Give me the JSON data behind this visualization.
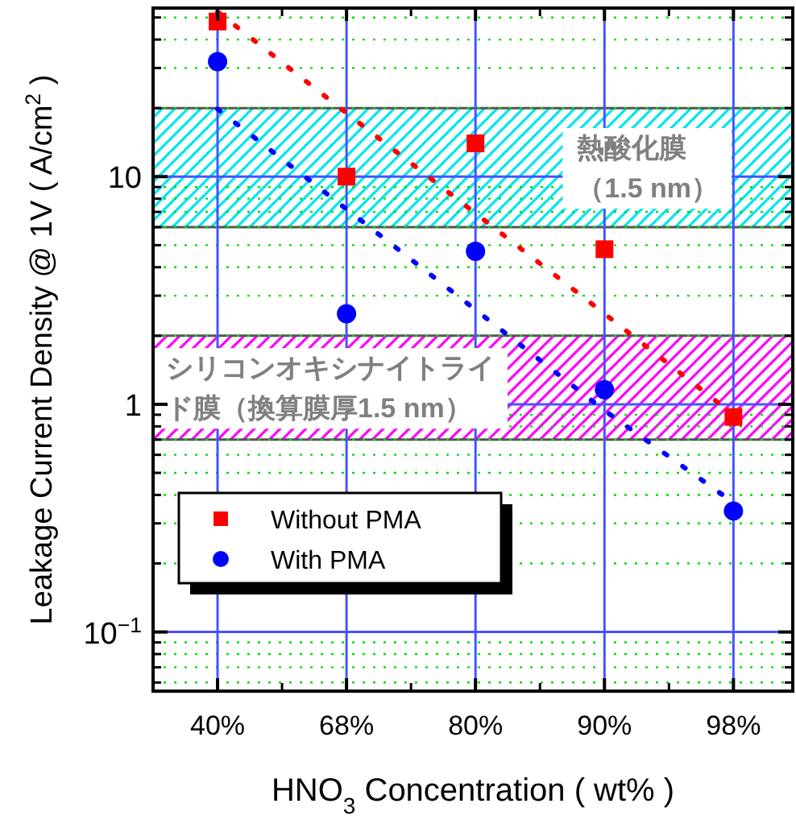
{
  "chart_data": {
    "type": "scatter",
    "xlabel": "HNO$_{3}$ Concentration ( wt% )",
    "ylabel": "Leakage Current Density @ 1V ( A/cm$^{2}$ )",
    "categories": [
      "40%",
      "68%",
      "80%",
      "90%",
      "98%"
    ],
    "log": "y",
    "ylim": [
      0.055,
      55
    ],
    "yticks": [
      {
        "value": 0.06,
        "label": null
      },
      {
        "value": 0.07,
        "label": null
      },
      {
        "value": 0.08,
        "label": null
      },
      {
        "value": 0.09,
        "label": null
      },
      {
        "value": 0.1,
        "label": "10$^{−1}$"
      },
      {
        "value": 0.2,
        "label": null
      },
      {
        "value": 0.3,
        "label": null
      },
      {
        "value": 0.4,
        "label": null
      },
      {
        "value": 0.5,
        "label": null
      },
      {
        "value": 0.6,
        "label": null
      },
      {
        "value": 0.7,
        "label": null
      },
      {
        "value": 0.8,
        "label": null
      },
      {
        "value": 0.9,
        "label": null
      },
      1,
      {
        "value": 2,
        "label": null
      },
      {
        "value": 3,
        "label": null
      },
      {
        "value": 4,
        "label": null
      },
      {
        "value": 5,
        "label": null
      },
      {
        "value": 6,
        "label": null
      },
      {
        "value": 7,
        "label": null
      },
      {
        "value": 8,
        "label": null
      },
      {
        "value": 9,
        "label": null
      },
      10,
      {
        "value": 20,
        "label": null
      },
      {
        "value": 30,
        "label": null
      },
      {
        "value": 40,
        "label": null
      },
      {
        "value": 50,
        "label": null
      }
    ],
    "grid": true,
    "legend": "left",
    "series": [
      {
        "name": "Without PMA",
        "marker": "square",
        "color": "#ff0000",
        "values": [
          48,
          10,
          14,
          4.8,
          0.88
        ]
      },
      {
        "name": "With PMA",
        "marker": "circle",
        "color": "#0000ff",
        "values": [
          32,
          2.5,
          4.7,
          1.16,
          0.34
        ]
      },
      {
        "type": "line",
        "line_style": "dotted",
        "color": "#ff0000",
        "values": [
          53,
          19,
          6.9,
          2.5,
          0.9
        ]
      },
      {
        "type": "line",
        "line_style": "dotted",
        "color": "#0000ff",
        "values": [
          19.8,
          7.2,
          2.6,
          0.94,
          0.37
        ]
      }
    ],
    "bands": [
      {
        "axis": "y",
        "from": 6,
        "to": 20,
        "label": "熱酸化膜（1.5 nm）",
        "color": "#00e5ee"
      },
      {
        "axis": "y",
        "from": 0.7,
        "to": 2,
        "label": "シリコンオキシナイトライド膜（換算膜厚1.5 nm）",
        "color": "#ff00ff"
      }
    ]
  }
}
